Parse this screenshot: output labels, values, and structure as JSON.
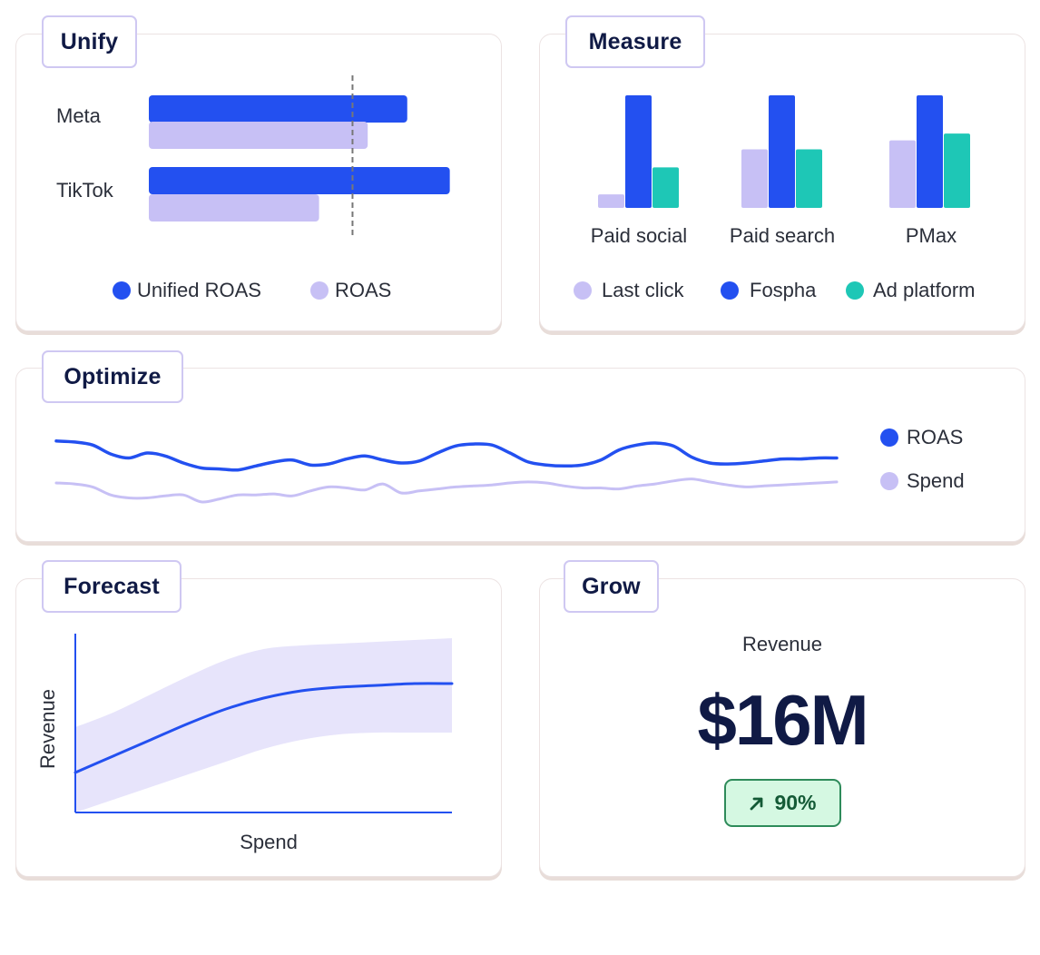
{
  "colors": {
    "blue": "#2350f0",
    "lavender": "#c7c0f5",
    "teal": "#1ec7b6",
    "navy": "#101a45",
    "band": "#e7e4fb",
    "badge_bg": "#d5f8e2",
    "badge_border": "#2e8b5a",
    "badge_text": "#145a36"
  },
  "cards": {
    "unify": {
      "title": "Unify"
    },
    "measure": {
      "title": "Measure"
    },
    "optimize": {
      "title": "Optimize"
    },
    "forecast": {
      "title": "Forecast"
    },
    "grow": {
      "title": "Grow"
    }
  },
  "chart_data": [
    {
      "id": "unify",
      "type": "bar",
      "orientation": "horizontal",
      "categories": [
        "Meta",
        "TikTok"
      ],
      "series": [
        {
          "name": "Unified ROAS",
          "color": "#2350f0",
          "values": [
            85,
            99
          ]
        },
        {
          "name": "ROAS",
          "color": "#c7c0f5",
          "values": [
            72,
            56
          ]
        }
      ],
      "reference_value": 67,
      "xlim": [
        0,
        100
      ],
      "legend": "bottom"
    },
    {
      "id": "measure",
      "type": "bar",
      "categories": [
        "Paid social",
        "Paid search",
        "PMax"
      ],
      "series": [
        {
          "name": "Last click",
          "color": "#c7c0f5",
          "values": [
            12,
            52,
            60
          ]
        },
        {
          "name": "Fospha",
          "color": "#2350f0",
          "values": [
            100,
            100,
            100
          ]
        },
        {
          "name": "Ad platform",
          "color": "#1ec7b6",
          "values": [
            36,
            52,
            66
          ]
        }
      ],
      "ylim": [
        0,
        100
      ],
      "legend": "bottom"
    },
    {
      "id": "optimize",
      "type": "line",
      "x": [
        0,
        1,
        2,
        3,
        4,
        5,
        6,
        7,
        8,
        9,
        10,
        11,
        12,
        13,
        14,
        15,
        16,
        17,
        18,
        19,
        20,
        21,
        22,
        23,
        24,
        25,
        26,
        27,
        28,
        29,
        30,
        31,
        32,
        33,
        34,
        35,
        36,
        37,
        38,
        39,
        40,
        41,
        42,
        43
      ],
      "series": [
        {
          "name": "ROAS",
          "color": "#2350f0",
          "values": [
            72,
            71,
            68,
            59,
            55,
            60,
            57,
            50,
            45,
            44,
            43,
            47,
            51,
            53,
            48,
            49,
            54,
            57,
            53,
            50,
            52,
            60,
            67,
            69,
            68,
            60,
            51,
            48,
            47,
            48,
            53,
            63,
            68,
            70,
            67,
            56,
            50,
            49,
            50,
            52,
            54,
            54,
            55,
            55
          ]
        },
        {
          "name": "Spend",
          "color": "#c7c0f5",
          "values": [
            30,
            29,
            26,
            18,
            15,
            15,
            17,
            18,
            11,
            14,
            18,
            18,
            19,
            17,
            22,
            26,
            25,
            23,
            29,
            20,
            22,
            24,
            26,
            27,
            28,
            30,
            31,
            30,
            27,
            25,
            25,
            24,
            27,
            29,
            32,
            34,
            31,
            28,
            26,
            27,
            28,
            29,
            30,
            31
          ]
        }
      ],
      "ylim": [
        0,
        100
      ],
      "legend": "right"
    },
    {
      "id": "forecast",
      "type": "area",
      "xlabel": "Spend",
      "ylabel": "Revenue",
      "x": [
        0,
        10,
        20,
        30,
        40,
        50,
        60,
        70,
        80,
        90,
        100
      ],
      "series": [
        {
          "name": "",
          "color": "#2350f0",
          "values": [
            22,
            31,
            40,
            49,
            57,
            63,
            67,
            69,
            70,
            71,
            71
          ]
        }
      ],
      "band_lower": [
        0,
        7,
        14,
        21,
        28,
        35,
        40,
        43,
        44,
        44,
        44
      ],
      "band_upper": [
        47,
        55,
        65,
        75,
        84,
        90,
        92,
        93,
        94,
        95,
        96
      ],
      "xlim": [
        0,
        100
      ],
      "ylim": [
        0,
        100
      ],
      "grid": false
    }
  ],
  "grow": {
    "label": "Revenue",
    "value": "$16M",
    "change_icon": "arrow-up-right-icon",
    "change": "90%"
  }
}
